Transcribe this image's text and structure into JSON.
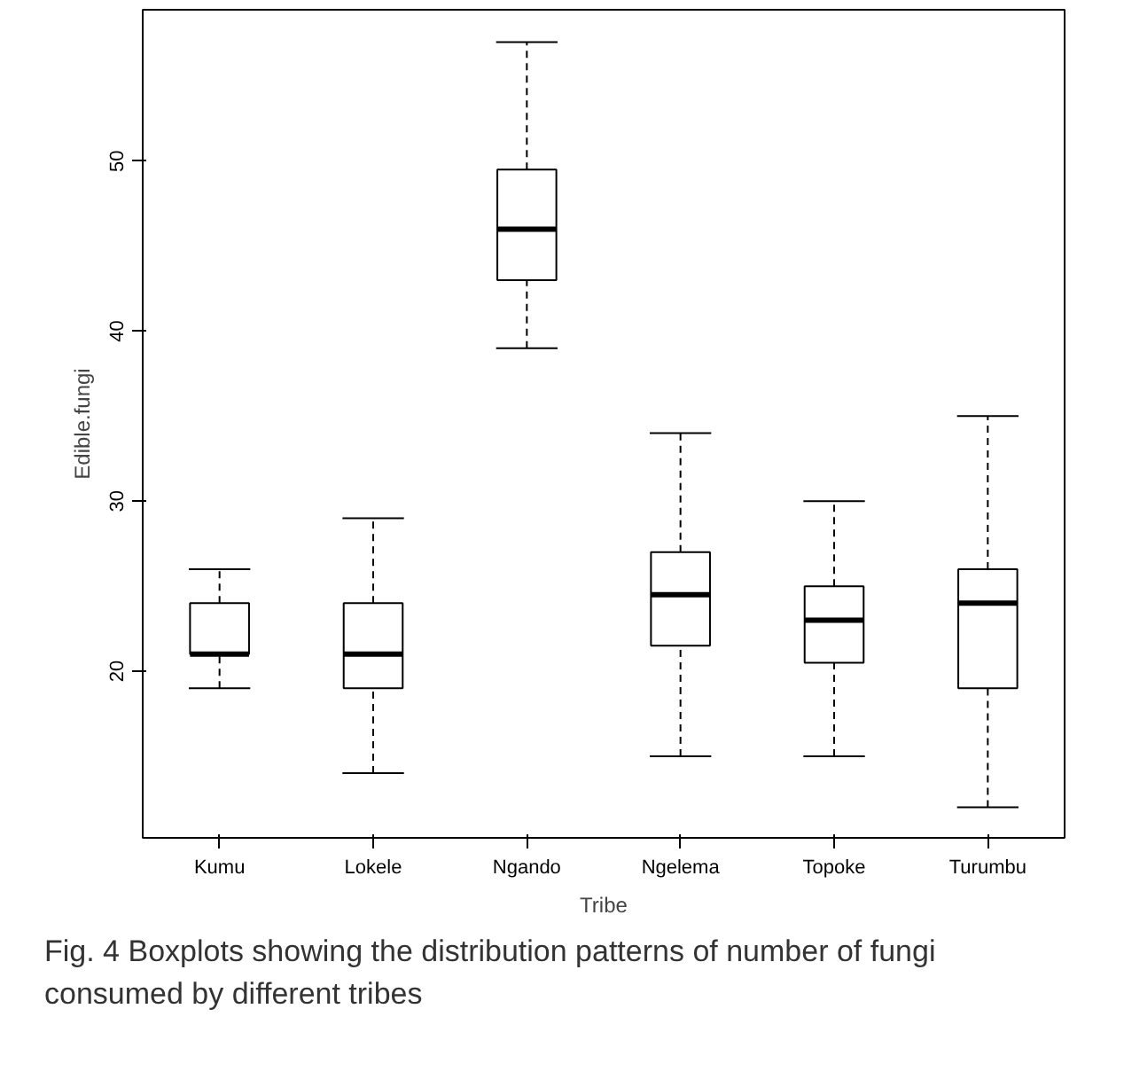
{
  "chart_data": {
    "type": "box",
    "xlabel": "Tribe",
    "ylabel": "Edible.fungi",
    "categories": [
      "Kumu",
      "Lokele",
      "Ngando",
      "Ngelema",
      "Topoke",
      "Turumbu"
    ],
    "boxes": [
      {
        "low": 19,
        "q1": 21,
        "median": 21,
        "q3": 24,
        "high": 26
      },
      {
        "low": 14,
        "q1": 19,
        "median": 21,
        "q3": 24,
        "high": 29
      },
      {
        "low": 39,
        "q1": 43,
        "median": 46,
        "q3": 49.5,
        "high": 57
      },
      {
        "low": 15,
        "q1": 21.5,
        "median": 24.5,
        "q3": 27,
        "high": 34
      },
      {
        "low": 15,
        "q1": 20.5,
        "median": 23,
        "q3": 25,
        "high": 30
      },
      {
        "low": 12,
        "q1": 19,
        "median": 24,
        "q3": 26,
        "high": 35
      }
    ],
    "ylim": [
      10.2,
      58.9
    ],
    "yticks": [
      20,
      30,
      40,
      50
    ],
    "grid": false,
    "annotations": [
      "Fig. 4 Boxplots showing the distribution patterns of number of fungi consumed by different tribes"
    ]
  }
}
